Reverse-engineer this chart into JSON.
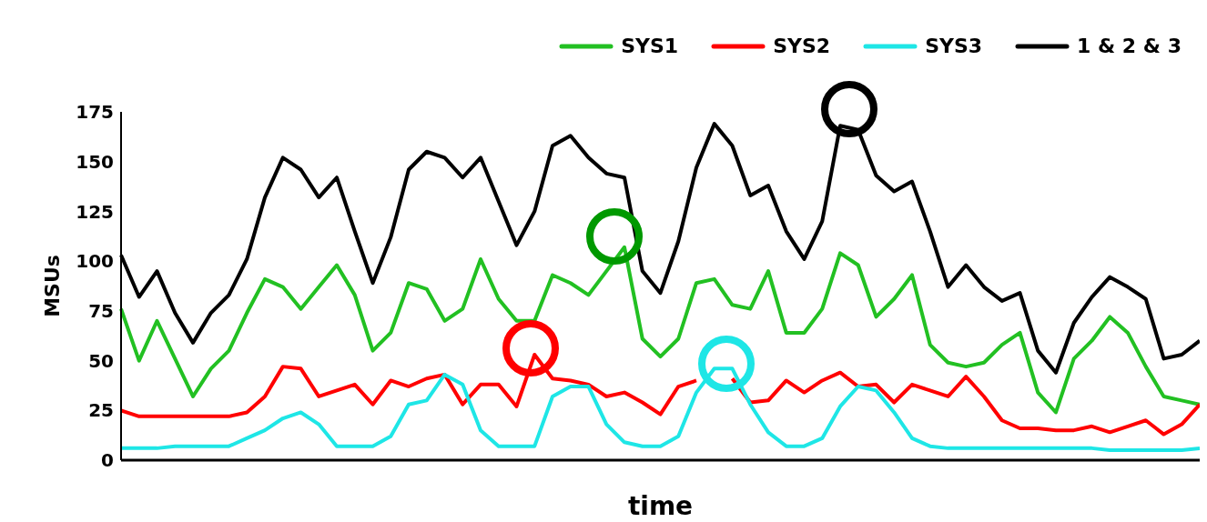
{
  "chart_data": {
    "type": "line",
    "xlabel": "time",
    "ylabel": "MSUs",
    "legend": "top right",
    "marker": "none",
    "ylim": [
      0,
      175
    ],
    "yticks": [
      0,
      25,
      50,
      75,
      100,
      125,
      150,
      175
    ],
    "categories": [
      null,
      null,
      null,
      null,
      null,
      null,
      null,
      null,
      null,
      null,
      null,
      null,
      null,
      null,
      null,
      null,
      null,
      null,
      null,
      null,
      null,
      null,
      null,
      null,
      null,
      null,
      null,
      null,
      null,
      null,
      null,
      null,
      null,
      null,
      null,
      null,
      null,
      null,
      null,
      null,
      null,
      null,
      null,
      null,
      null,
      null,
      null,
      null,
      null,
      null,
      null,
      null,
      null,
      null,
      null,
      null,
      null,
      null,
      null,
      null,
      null
    ],
    "series": [
      {
        "name": "SYS1",
        "color": "#22c022",
        "values": [
          76,
          50,
          70,
          51,
          32,
          46,
          55,
          74,
          91,
          87,
          76,
          87,
          98,
          83,
          55,
          64,
          89,
          86,
          70,
          76,
          101,
          81,
          70,
          70,
          93,
          89,
          83,
          95,
          107,
          61,
          52,
          61,
          89,
          91,
          78,
          76,
          95,
          64,
          64,
          76,
          104,
          98,
          72,
          81,
          93,
          58,
          49,
          47,
          49,
          58,
          64,
          34,
          24,
          51,
          60,
          72,
          64,
          47,
          32,
          30,
          28
        ]
      },
      {
        "name": "SYS2",
        "color": "#ff0000",
        "values": [
          25,
          22,
          22,
          22,
          22,
          22,
          22,
          24,
          32,
          47,
          46,
          32,
          35,
          38,
          28,
          40,
          37,
          41,
          43,
          28,
          38,
          38,
          27,
          53,
          41,
          40,
          38,
          32,
          34,
          29,
          23,
          37,
          40,
          null,
          41,
          29,
          30,
          40,
          34,
          40,
          44,
          37,
          38,
          29,
          38,
          35,
          32,
          42,
          32,
          20,
          16,
          16,
          15,
          15,
          17,
          14,
          17,
          20,
          13,
          18,
          28
        ]
      },
      {
        "name": "SYS3",
        "color": "#1ee6e6",
        "values": [
          6,
          6,
          6,
          7,
          7,
          7,
          7,
          11,
          15,
          21,
          24,
          18,
          7,
          7,
          7,
          12,
          28,
          30,
          43,
          38,
          15,
          7,
          7,
          7,
          32,
          37,
          37,
          18,
          9,
          7,
          7,
          12,
          34,
          46,
          46,
          28,
          14,
          7,
          7,
          11,
          27,
          37,
          35,
          24,
          11,
          7,
          6,
          6,
          6,
          6,
          6,
          6,
          6,
          6,
          6,
          5,
          5,
          5,
          5,
          5,
          6
        ]
      },
      {
        "name": "1 & 2 & 3",
        "color": "#000000",
        "values": [
          103,
          82,
          95,
          74,
          59,
          74,
          83,
          101,
          132,
          152,
          146,
          132,
          142,
          115,
          89,
          112,
          146,
          155,
          152,
          142,
          152,
          130,
          108,
          125,
          158,
          163,
          152,
          144,
          142,
          95,
          84,
          110,
          147,
          169,
          158,
          133,
          138,
          115,
          101,
          120,
          168,
          166,
          143,
          135,
          140,
          115,
          87,
          98,
          87,
          80,
          84,
          55,
          44,
          69,
          82,
          92,
          87,
          81,
          51,
          53,
          60
        ]
      }
    ]
  }
}
